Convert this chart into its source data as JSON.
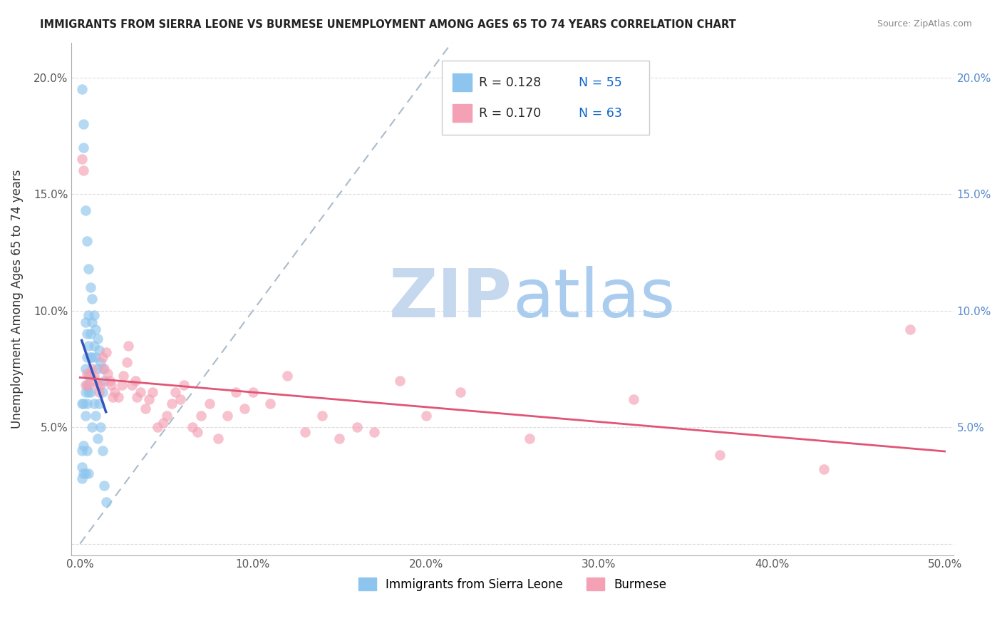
{
  "title": "IMMIGRANTS FROM SIERRA LEONE VS BURMESE UNEMPLOYMENT AMONG AGES 65 TO 74 YEARS CORRELATION CHART",
  "source": "Source: ZipAtlas.com",
  "ylabel": "Unemployment Among Ages 65 to 74 years",
  "xlim": [
    -0.005,
    0.505
  ],
  "ylim": [
    -0.005,
    0.215
  ],
  "xtick_vals": [
    0.0,
    0.1,
    0.2,
    0.3,
    0.4,
    0.5
  ],
  "xticklabels": [
    "0.0%",
    "10.0%",
    "20.0%",
    "30.0%",
    "40.0%",
    "50.0%"
  ],
  "ytick_vals": [
    0.0,
    0.05,
    0.1,
    0.15,
    0.2
  ],
  "yticklabels_left": [
    "",
    "5.0%",
    "10.0%",
    "15.0%",
    "20.0%"
  ],
  "yticklabels_right": [
    "",
    "5.0%",
    "10.0%",
    "15.0%",
    "20.0%"
  ],
  "legend_r1": "R = 0.128",
  "legend_n1": "N = 55",
  "legend_r2": "R = 0.170",
  "legend_n2": "N = 63",
  "color_blue": "#8EC5EE",
  "color_pink": "#F4A0B5",
  "color_blue_line": "#3355BB",
  "color_pink_line": "#E05575",
  "color_diag": "#AABBCC",
  "watermark_zip": "ZIP",
  "watermark_atlas": "atlas",
  "watermark_color_zip": "#C5D8EE",
  "watermark_color_atlas": "#AACCEE",
  "sierra_leone_x": [
    0.001,
    0.001,
    0.001,
    0.001,
    0.001,
    0.002,
    0.002,
    0.002,
    0.002,
    0.002,
    0.003,
    0.003,
    0.003,
    0.003,
    0.003,
    0.003,
    0.004,
    0.004,
    0.004,
    0.004,
    0.004,
    0.004,
    0.005,
    0.005,
    0.005,
    0.005,
    0.005,
    0.005,
    0.006,
    0.006,
    0.006,
    0.006,
    0.007,
    0.007,
    0.007,
    0.007,
    0.008,
    0.008,
    0.008,
    0.009,
    0.009,
    0.009,
    0.01,
    0.01,
    0.01,
    0.011,
    0.011,
    0.012,
    0.012,
    0.013,
    0.013,
    0.013,
    0.014,
    0.014,
    0.015
  ],
  "sierra_leone_y": [
    0.195,
    0.06,
    0.04,
    0.033,
    0.028,
    0.18,
    0.17,
    0.06,
    0.042,
    0.03,
    0.143,
    0.095,
    0.075,
    0.065,
    0.055,
    0.03,
    0.13,
    0.09,
    0.08,
    0.068,
    0.06,
    0.04,
    0.118,
    0.098,
    0.085,
    0.072,
    0.065,
    0.03,
    0.11,
    0.09,
    0.08,
    0.065,
    0.105,
    0.095,
    0.08,
    0.05,
    0.098,
    0.085,
    0.06,
    0.092,
    0.08,
    0.055,
    0.088,
    0.075,
    0.045,
    0.083,
    0.06,
    0.078,
    0.05,
    0.075,
    0.065,
    0.04,
    0.07,
    0.025,
    0.018
  ],
  "burmese_x": [
    0.001,
    0.002,
    0.003,
    0.004,
    0.005,
    0.006,
    0.007,
    0.008,
    0.009,
    0.01,
    0.011,
    0.012,
    0.013,
    0.014,
    0.015,
    0.016,
    0.017,
    0.018,
    0.019,
    0.02,
    0.022,
    0.024,
    0.025,
    0.027,
    0.028,
    0.03,
    0.032,
    0.033,
    0.035,
    0.038,
    0.04,
    0.042,
    0.045,
    0.048,
    0.05,
    0.053,
    0.055,
    0.058,
    0.06,
    0.065,
    0.068,
    0.07,
    0.075,
    0.08,
    0.085,
    0.09,
    0.095,
    0.1,
    0.11,
    0.12,
    0.13,
    0.14,
    0.15,
    0.16,
    0.17,
    0.185,
    0.2,
    0.22,
    0.26,
    0.32,
    0.37,
    0.43,
    0.48
  ],
  "burmese_y": [
    0.165,
    0.16,
    0.068,
    0.073,
    0.068,
    0.072,
    0.075,
    0.072,
    0.07,
    0.068,
    0.065,
    0.068,
    0.08,
    0.075,
    0.082,
    0.073,
    0.07,
    0.068,
    0.063,
    0.065,
    0.063,
    0.068,
    0.072,
    0.078,
    0.085,
    0.068,
    0.07,
    0.063,
    0.065,
    0.058,
    0.062,
    0.065,
    0.05,
    0.052,
    0.055,
    0.06,
    0.065,
    0.062,
    0.068,
    0.05,
    0.048,
    0.055,
    0.06,
    0.045,
    0.055,
    0.065,
    0.058,
    0.065,
    0.06,
    0.072,
    0.048,
    0.055,
    0.045,
    0.05,
    0.048,
    0.07,
    0.055,
    0.065,
    0.045,
    0.062,
    0.038,
    0.032,
    0.092
  ]
}
